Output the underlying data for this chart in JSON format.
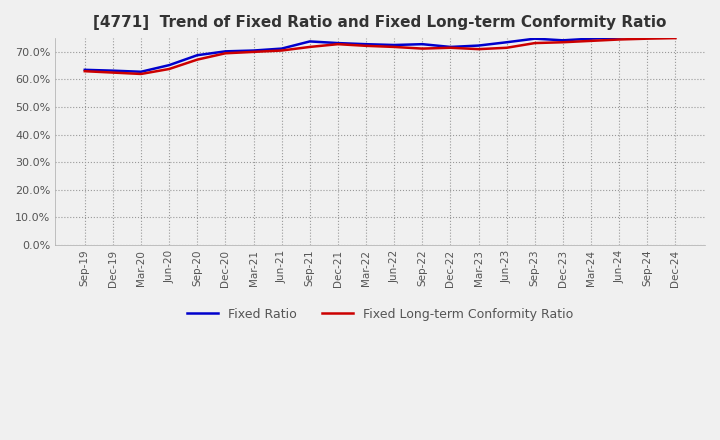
{
  "title": "[4771]  Trend of Fixed Ratio and Fixed Long-term Conformity Ratio",
  "title_color": "#333333",
  "legend_labels": [
    "Fixed Ratio",
    "Fixed Long-term Conformity Ratio"
  ],
  "line_colors": [
    "#0000CC",
    "#CC0000"
  ],
  "background_color": "#F0F0F0",
  "plot_bg_color": "#F0F0F0",
  "grid_color": "#999999",
  "ylim": [
    0,
    75
  ],
  "yticks": [
    0,
    10,
    20,
    30,
    40,
    50,
    60,
    70
  ],
  "x_labels": [
    "Sep-19",
    "Dec-19",
    "Mar-20",
    "Jun-20",
    "Sep-20",
    "Dec-20",
    "Mar-21",
    "Jun-21",
    "Sep-21",
    "Dec-21",
    "Mar-22",
    "Jun-22",
    "Sep-22",
    "Dec-22",
    "Mar-23",
    "Jun-23",
    "Sep-23",
    "Dec-23",
    "Mar-24",
    "Jun-24",
    "Sep-24",
    "Dec-24"
  ],
  "fixed_ratio": [
    63.5,
    63.2,
    62.8,
    65.2,
    68.8,
    70.2,
    70.5,
    71.2,
    73.8,
    73.2,
    72.8,
    72.5,
    72.8,
    71.8,
    72.3,
    73.5,
    74.8,
    74.2,
    74.8,
    75.2,
    75.8,
    76.2
  ],
  "fixed_lt_ratio": [
    63.0,
    62.5,
    62.0,
    63.8,
    67.2,
    69.5,
    70.0,
    70.5,
    71.8,
    72.8,
    72.2,
    71.8,
    71.2,
    71.5,
    71.0,
    71.5,
    73.2,
    73.5,
    74.0,
    74.5,
    74.8,
    75.0
  ],
  "line_width": 1.8
}
